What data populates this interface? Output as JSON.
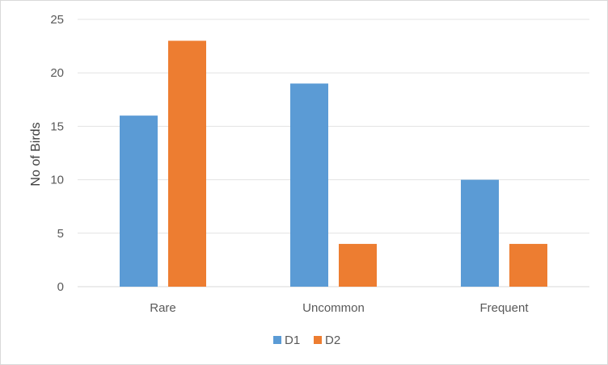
{
  "chart_data": {
    "type": "bar",
    "title": "",
    "xlabel": "",
    "ylabel": "No of Birds",
    "categories": [
      "Rare",
      "Uncommon",
      "Frequent"
    ],
    "series": [
      {
        "name": "D1",
        "values": [
          16,
          19,
          10
        ],
        "color": "#5b9bd5"
      },
      {
        "name": "D2",
        "values": [
          23,
          4,
          4
        ],
        "color": "#ed7d31"
      }
    ],
    "ylim": [
      0,
      25
    ],
    "yticks": [
      0,
      5,
      10,
      15,
      20,
      25
    ],
    "grid": true,
    "legend_position": "bottom"
  }
}
